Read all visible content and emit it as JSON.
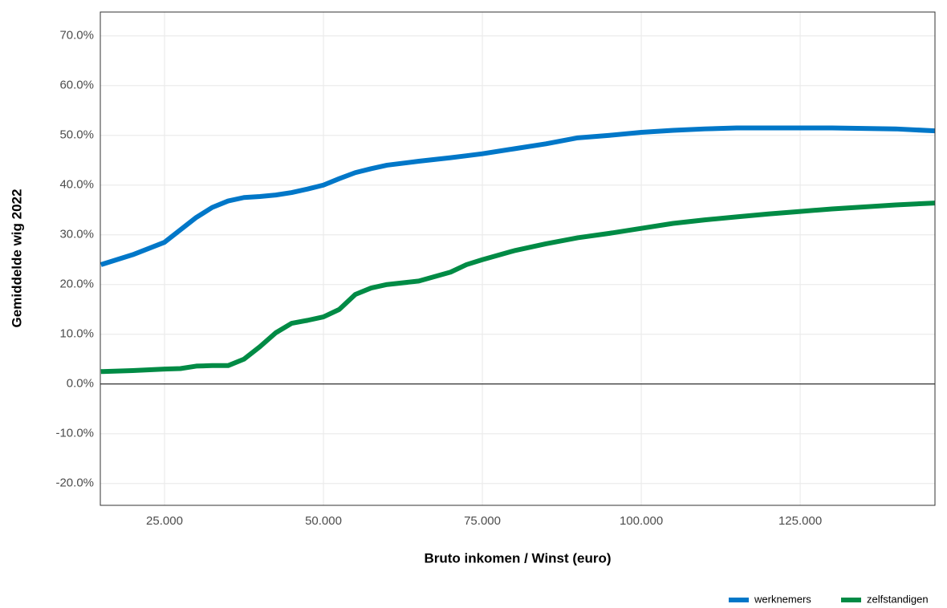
{
  "chart_data": {
    "type": "line",
    "x_label": "Bruto inkomen / Winst (euro)",
    "y_label": "Gemiddelde wig 2022",
    "x": [
      15000,
      20000,
      25000,
      27500,
      30000,
      32500,
      35000,
      37500,
      40000,
      42500,
      45000,
      47500,
      50000,
      52500,
      55000,
      57500,
      60000,
      65000,
      70000,
      72500,
      75000,
      80000,
      85000,
      90000,
      95000,
      100000,
      105000,
      110000,
      115000,
      120000,
      125000,
      130000,
      135000,
      140000,
      146200
    ],
    "series": [
      {
        "name": "werknemers",
        "color": "#0077c8",
        "values": [
          24,
          26,
          28.5,
          31,
          33.5,
          35.5,
          36.8,
          37.5,
          37.7,
          38,
          38.5,
          39.2,
          40,
          41.3,
          42.5,
          43.3,
          44,
          44.8,
          45.5,
          45.9,
          46.3,
          47.3,
          48.3,
          49.5,
          50,
          50.6,
          51,
          51.3,
          51.5,
          51.5,
          51.5,
          51.5,
          51.4,
          51.3,
          50.9
        ]
      },
      {
        "name": "zelfstandigen",
        "color": "#008b45",
        "values": [
          2.5,
          2.7,
          3,
          3.1,
          3.6,
          3.7,
          3.7,
          5,
          7.5,
          10.3,
          12.2,
          12.8,
          13.5,
          15,
          18,
          19.3,
          20,
          20.7,
          22.5,
          24,
          25,
          26.8,
          28.2,
          29.4,
          30.3,
          31.3,
          32.3,
          33,
          33.6,
          34.2,
          34.7,
          35.2,
          35.6,
          36,
          36.4
        ]
      }
    ],
    "xlim": [
      14900,
      146200
    ],
    "xticks": [
      {
        "value": 25000,
        "label": "25.000"
      },
      {
        "value": 50000,
        "label": "50.000"
      },
      {
        "value": 75000,
        "label": "75.000"
      },
      {
        "value": 100000,
        "label": "100.000"
      },
      {
        "value": 125000,
        "label": "125.000"
      }
    ],
    "ylim": [
      -24.4,
      74.8
    ],
    "yticks": [
      {
        "value": -20,
        "label": "-20.0%"
      },
      {
        "value": -10,
        "label": "-10.0%"
      },
      {
        "value": 0,
        "label": "0.0%"
      },
      {
        "value": 10,
        "label": "10.0%"
      },
      {
        "value": 20,
        "label": "20.0%"
      },
      {
        "value": 30,
        "label": "30.0%"
      },
      {
        "value": 40,
        "label": "40.0%"
      },
      {
        "value": 50,
        "label": "50.0%"
      },
      {
        "value": 60,
        "label": "60.0%"
      },
      {
        "value": 70,
        "label": "70.0%"
      }
    ],
    "grid": true,
    "legend": "bottom-right"
  }
}
